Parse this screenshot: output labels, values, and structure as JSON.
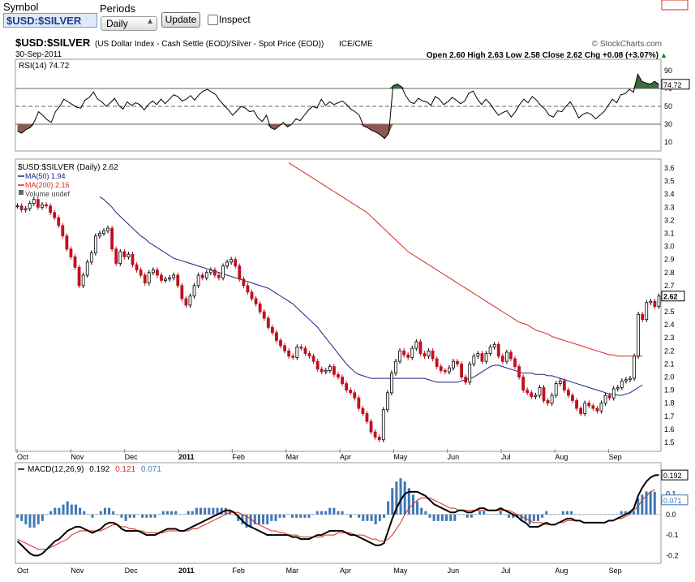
{
  "toolbar": {
    "symbol_label": "Symbol",
    "symbol_value": "$USD:$SILVER",
    "periods_label": "Periods",
    "period_value": "Daily",
    "update_label": "Update",
    "inspect_label": "Inspect"
  },
  "header": {
    "title": "$USD:$SILVER",
    "subtitle": "(US Dollar Index - Cash Settle (EOD)/Silver - Spot Price (EOD))",
    "exchange": "ICE/CME",
    "copyright": "© StockCharts.com",
    "date": "30-Sep-2011",
    "ohlc": "Open 2.60  High 2.63  Low 2.58  Close 2.62  Chg +0.08 (+3.07%)",
    "ohlc_color": "#008000",
    "chg_arrow": "▲"
  },
  "chart_data": [
    {
      "type": "line",
      "panel": "RSI",
      "legend": "RSI(14) 74.72",
      "current_value": "74.72",
      "ylim": [
        0,
        100
      ],
      "y_ticks": [
        10,
        30,
        50,
        70,
        90
      ],
      "levels": [
        30,
        50,
        70
      ],
      "values": [
        22,
        20,
        24,
        26,
        33,
        44,
        40,
        35,
        32,
        44,
        50,
        58,
        55,
        52,
        49,
        48,
        57,
        60,
        66,
        58,
        55,
        50,
        54,
        59,
        51,
        47,
        55,
        51,
        54,
        52,
        46,
        52,
        56,
        52,
        58,
        53,
        58,
        63,
        61,
        56,
        58,
        62,
        57,
        63,
        67,
        69,
        66,
        63,
        56,
        51,
        46,
        40,
        45,
        50,
        48,
        44,
        45,
        37,
        33,
        40,
        26,
        24,
        28,
        32,
        27,
        30,
        36,
        34,
        40,
        46,
        50,
        48,
        58,
        51,
        55,
        52,
        54,
        56,
        52,
        47,
        44,
        40,
        28,
        26,
        23,
        21,
        18,
        14,
        20,
        73,
        75,
        72,
        62,
        55,
        53,
        59,
        56,
        55,
        51,
        61,
        58,
        52,
        55,
        60,
        57,
        53,
        56,
        65,
        67,
        58,
        52,
        58,
        53,
        46,
        40,
        43,
        45,
        38,
        44,
        52,
        58,
        54,
        61,
        57,
        51,
        47,
        40,
        38,
        45,
        44,
        50,
        55,
        47,
        37,
        41,
        43,
        41,
        36,
        40,
        44,
        51,
        58,
        54,
        63,
        64,
        69,
        66,
        86,
        78,
        76,
        75,
        78,
        74.72
      ],
      "colors": {
        "line": "#000000",
        "oversold_fill": "#8c5a55",
        "overbought_fill": "#3c6b3c"
      }
    },
    {
      "type": "candlestick",
      "panel": "price",
      "legend": "$USD:$SILVER (Daily) 2.62",
      "ma50_label": "MA(50) 1.94",
      "ma200_label": "MA(200) 2.16",
      "volume_label": "Volume undef",
      "ylim": [
        1.45,
        3.65
      ],
      "y_ticks": [
        1.5,
        1.6,
        1.7,
        1.8,
        1.9,
        2.0,
        2.1,
        2.2,
        2.3,
        2.4,
        2.5,
        2.6,
        2.7,
        2.8,
        2.9,
        3.0,
        3.1,
        3.2,
        3.3,
        3.4,
        3.5,
        3.6
      ],
      "x_ticks": [
        "Oct",
        "Nov",
        "Dec",
        "2011",
        "Feb",
        "Mar",
        "Apr",
        "May",
        "Jun",
        "Jul",
        "Aug",
        "Sep"
      ],
      "close": [
        3.31,
        3.28,
        3.29,
        3.33,
        3.36,
        3.3,
        3.32,
        3.31,
        3.26,
        3.22,
        3.16,
        3.08,
        2.98,
        2.92,
        2.84,
        2.7,
        2.78,
        2.88,
        2.95,
        3.08,
        3.1,
        3.12,
        3.14,
        2.98,
        2.87,
        2.96,
        2.92,
        2.94,
        2.86,
        2.82,
        2.78,
        2.72,
        2.8,
        2.82,
        2.78,
        2.74,
        2.75,
        2.76,
        2.78,
        2.7,
        2.6,
        2.55,
        2.62,
        2.7,
        2.78,
        2.76,
        2.8,
        2.82,
        2.78,
        2.76,
        2.85,
        2.88,
        2.9,
        2.85,
        2.75,
        2.7,
        2.65,
        2.6,
        2.56,
        2.5,
        2.45,
        2.38,
        2.34,
        2.28,
        2.24,
        2.2,
        2.16,
        2.15,
        2.23,
        2.22,
        2.18,
        2.16,
        2.12,
        2.06,
        2.04,
        2.05,
        2.08,
        2.02,
        2.0,
        1.95,
        1.9,
        1.88,
        1.84,
        1.76,
        1.72,
        1.66,
        1.58,
        1.54,
        1.52,
        1.75,
        1.88,
        2.03,
        2.12,
        2.2,
        2.17,
        2.15,
        2.22,
        2.27,
        2.18,
        2.16,
        2.2,
        2.14,
        2.08,
        2.05,
        2.04,
        2.07,
        2.12,
        2.1,
        2.0,
        1.96,
        2.1,
        2.16,
        2.18,
        2.12,
        2.18,
        2.23,
        2.25,
        2.16,
        2.12,
        2.19,
        2.14,
        2.08,
        2.0,
        1.9,
        1.88,
        1.85,
        1.86,
        1.92,
        1.82,
        1.8,
        1.86,
        1.95,
        1.97,
        1.9,
        1.86,
        1.82,
        1.76,
        1.72,
        1.8,
        1.78,
        1.76,
        1.74,
        1.8,
        1.86,
        1.84,
        1.91,
        1.92,
        1.97,
        1.98,
        1.99,
        2.16,
        2.48,
        2.44,
        2.57,
        2.58,
        2.54,
        2.62
      ],
      "ma50": [
        null,
        null,
        null,
        null,
        null,
        null,
        null,
        null,
        null,
        null,
        null,
        null,
        null,
        null,
        null,
        null,
        null,
        null,
        null,
        null,
        3.38,
        3.36,
        3.33,
        3.3,
        3.26,
        3.23,
        3.2,
        3.17,
        3.14,
        3.11,
        3.08,
        3.06,
        3.03,
        3.01,
        2.99,
        2.97,
        2.95,
        2.93,
        2.91,
        2.9,
        2.89,
        2.88,
        2.87,
        2.86,
        2.85,
        2.84,
        2.83,
        2.82,
        2.81,
        2.8,
        2.79,
        2.78,
        2.77,
        2.76,
        2.75,
        2.74,
        2.73,
        2.72,
        2.71,
        2.7,
        2.69,
        2.68,
        2.66,
        2.64,
        2.62,
        2.6,
        2.58,
        2.56,
        2.53,
        2.5,
        2.47,
        2.44,
        2.41,
        2.38,
        2.34,
        2.3,
        2.26,
        2.22,
        2.18,
        2.14,
        2.1,
        2.07,
        2.04,
        2.02,
        2.01,
        2.0,
        1.99,
        1.99,
        1.99,
        1.99,
        1.99,
        1.99,
        1.99,
        1.99,
        1.99,
        1.99,
        1.99,
        1.99,
        1.99,
        1.99,
        1.98,
        1.97,
        1.96,
        1.96,
        1.96,
        1.96,
        1.96,
        1.96,
        1.97,
        1.98,
        1.99,
        2.0,
        2.02,
        2.04,
        2.06,
        2.08,
        2.09,
        2.09,
        2.08,
        2.07,
        2.06,
        2.05,
        2.04,
        2.03,
        2.03,
        2.03,
        2.02,
        2.02,
        2.02,
        2.01,
        2.01,
        2.0,
        1.99,
        1.98,
        1.97,
        1.96,
        1.95,
        1.94,
        1.93,
        1.92,
        1.91,
        1.9,
        1.89,
        1.88,
        1.87,
        1.87,
        1.86,
        1.86,
        1.87,
        1.88,
        1.9,
        1.92,
        1.94
      ],
      "ma200": [
        null,
        null,
        null,
        null,
        null,
        null,
        null,
        null,
        null,
        null,
        null,
        null,
        null,
        null,
        null,
        null,
        null,
        null,
        null,
        null,
        null,
        null,
        null,
        null,
        null,
        null,
        null,
        null,
        null,
        null,
        null,
        null,
        null,
        null,
        null,
        null,
        null,
        null,
        null,
        null,
        null,
        null,
        null,
        null,
        null,
        null,
        null,
        null,
        null,
        null,
        null,
        null,
        null,
        null,
        null,
        null,
        null,
        null,
        null,
        null,
        null,
        null,
        null,
        null,
        null,
        null,
        3.64,
        3.62,
        3.6,
        3.58,
        3.56,
        3.54,
        3.52,
        3.5,
        3.48,
        3.46,
        3.44,
        3.42,
        3.4,
        3.38,
        3.36,
        3.34,
        3.32,
        3.3,
        3.28,
        3.26,
        3.23,
        3.2,
        3.17,
        3.14,
        3.11,
        3.08,
        3.05,
        3.02,
        2.99,
        2.96,
        2.94,
        2.92,
        2.9,
        2.88,
        2.86,
        2.84,
        2.82,
        2.8,
        2.78,
        2.76,
        2.74,
        2.72,
        2.7,
        2.68,
        2.66,
        2.64,
        2.62,
        2.6,
        2.58,
        2.56,
        2.54,
        2.52,
        2.5,
        2.48,
        2.46,
        2.44,
        2.42,
        2.41,
        2.4,
        2.38,
        2.36,
        2.35,
        2.34,
        2.33,
        2.31,
        2.3,
        2.29,
        2.28,
        2.27,
        2.26,
        2.25,
        2.24,
        2.23,
        2.22,
        2.21,
        2.2,
        2.19,
        2.18,
        2.17,
        2.17,
        2.16,
        2.16,
        2.16,
        2.16,
        2.16,
        2.16,
        2.16
      ],
      "last_price_label": "2.62",
      "ma200_value_label": "2.16",
      "ma50_value_label": "1.94",
      "colors": {
        "up": "#000000",
        "down": "#c01020",
        "ma50": "#1a237e",
        "ma200": "#d8281e"
      }
    },
    {
      "type": "line",
      "panel": "MACD",
      "legend_prefix": "MACD(12,26,9)",
      "macd_label": "0.192",
      "signal_label": "0.121",
      "hist_label": "0.071",
      "ylim": [
        -0.23,
        0.24
      ],
      "y_ticks": [
        -0.2,
        -0.1,
        0.0,
        0.1
      ],
      "macd": [
        -0.13,
        -0.15,
        -0.17,
        -0.19,
        -0.2,
        -0.2,
        -0.19,
        -0.17,
        -0.15,
        -0.13,
        -0.12,
        -0.1,
        -0.08,
        -0.07,
        -0.06,
        -0.06,
        -0.07,
        -0.08,
        -0.09,
        -0.08,
        -0.07,
        -0.05,
        -0.04,
        -0.04,
        -0.05,
        -0.07,
        -0.08,
        -0.08,
        -0.08,
        -0.08,
        -0.09,
        -0.1,
        -0.1,
        -0.1,
        -0.09,
        -0.08,
        -0.07,
        -0.07,
        -0.07,
        -0.08,
        -0.08,
        -0.07,
        -0.06,
        -0.05,
        -0.04,
        -0.03,
        -0.02,
        -0.01,
        0.0,
        0.01,
        0.02,
        0.02,
        0.01,
        -0.01,
        -0.03,
        -0.05,
        -0.06,
        -0.07,
        -0.08,
        -0.09,
        -0.1,
        -0.1,
        -0.1,
        -0.1,
        -0.1,
        -0.1,
        -0.11,
        -0.11,
        -0.12,
        -0.12,
        -0.12,
        -0.11,
        -0.1,
        -0.1,
        -0.09,
        -0.08,
        -0.08,
        -0.08,
        -0.08,
        -0.09,
        -0.1,
        -0.1,
        -0.11,
        -0.12,
        -0.13,
        -0.14,
        -0.15,
        -0.15,
        -0.14,
        -0.08,
        -0.02,
        0.03,
        0.07,
        0.1,
        0.11,
        0.11,
        0.11,
        0.1,
        0.09,
        0.07,
        0.05,
        0.04,
        0.03,
        0.02,
        0.01,
        0.01,
        0.02,
        0.02,
        0.01,
        0.01,
        0.02,
        0.03,
        0.03,
        0.02,
        0.02,
        0.02,
        0.03,
        0.02,
        0.01,
        0.0,
        -0.01,
        -0.03,
        -0.04,
        -0.06,
        -0.06,
        -0.06,
        -0.05,
        -0.04,
        -0.05,
        -0.05,
        -0.04,
        -0.03,
        -0.02,
        -0.02,
        -0.03,
        -0.03,
        -0.04,
        -0.04,
        -0.04,
        -0.04,
        -0.04,
        -0.04,
        -0.03,
        -0.03,
        -0.02,
        -0.01,
        0.0,
        0.01,
        0.03,
        0.09,
        0.13,
        0.16,
        0.18,
        0.19,
        0.192
      ],
      "signal": [
        -0.12,
        -0.13,
        -0.14,
        -0.15,
        -0.16,
        -0.17,
        -0.17,
        -0.17,
        -0.16,
        -0.15,
        -0.14,
        -0.13,
        -0.12,
        -0.1,
        -0.09,
        -0.08,
        -0.08,
        -0.08,
        -0.08,
        -0.08,
        -0.08,
        -0.07,
        -0.06,
        -0.05,
        -0.05,
        -0.06,
        -0.06,
        -0.07,
        -0.07,
        -0.08,
        -0.08,
        -0.09,
        -0.09,
        -0.09,
        -0.09,
        -0.09,
        -0.08,
        -0.08,
        -0.08,
        -0.08,
        -0.08,
        -0.08,
        -0.07,
        -0.07,
        -0.06,
        -0.05,
        -0.04,
        -0.03,
        -0.02,
        -0.01,
        0.0,
        0.01,
        0.01,
        0.01,
        0.0,
        -0.01,
        -0.02,
        -0.04,
        -0.05,
        -0.06,
        -0.07,
        -0.08,
        -0.08,
        -0.09,
        -0.09,
        -0.1,
        -0.1,
        -0.1,
        -0.11,
        -0.11,
        -0.11,
        -0.11,
        -0.11,
        -0.11,
        -0.1,
        -0.1,
        -0.1,
        -0.09,
        -0.09,
        -0.09,
        -0.09,
        -0.1,
        -0.1,
        -0.1,
        -0.11,
        -0.12,
        -0.12,
        -0.13,
        -0.13,
        -0.12,
        -0.1,
        -0.07,
        -0.04,
        0.0,
        0.03,
        0.05,
        0.07,
        0.08,
        0.08,
        0.08,
        0.07,
        0.06,
        0.05,
        0.04,
        0.03,
        0.03,
        0.02,
        0.02,
        0.02,
        0.02,
        0.02,
        0.02,
        0.02,
        0.02,
        0.02,
        0.02,
        0.02,
        0.02,
        0.02,
        0.01,
        0.0,
        -0.01,
        -0.02,
        -0.03,
        -0.04,
        -0.04,
        -0.04,
        -0.05,
        -0.05,
        -0.05,
        -0.04,
        -0.04,
        -0.03,
        -0.03,
        -0.03,
        -0.03,
        -0.04,
        -0.04,
        -0.04,
        -0.04,
        -0.04,
        -0.04,
        -0.03,
        -0.03,
        -0.02,
        -0.02,
        -0.01,
        0.0,
        0.02,
        0.04,
        0.07,
        0.09,
        0.11,
        0.121
      ],
      "colors": {
        "macd": "#000000",
        "signal": "#d8281e",
        "hist": "#3e78b5"
      }
    }
  ]
}
